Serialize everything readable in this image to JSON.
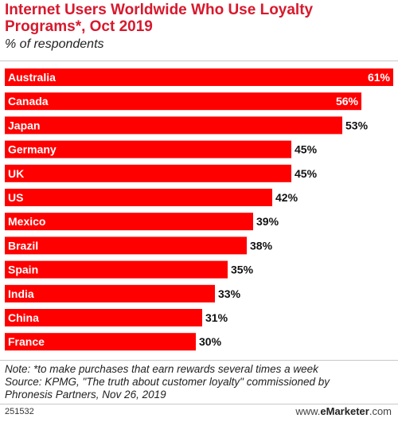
{
  "header": {
    "title": "Internet Users Worldwide Who Use Loyalty Programs*, Oct 2019",
    "subtitle": "% of respondents"
  },
  "chart_data": {
    "type": "bar",
    "orientation": "horizontal",
    "categories": [
      "Australia",
      "Canada",
      "Japan",
      "Germany",
      "UK",
      "US",
      "Mexico",
      "Brazil",
      "Spain",
      "India",
      "China",
      "France"
    ],
    "values": [
      61,
      56,
      53,
      45,
      45,
      42,
      39,
      38,
      35,
      33,
      31,
      30
    ],
    "value_labels": [
      "61%",
      "56%",
      "53%",
      "45%",
      "45%",
      "42%",
      "39%",
      "38%",
      "35%",
      "33%",
      "31%",
      "30%"
    ],
    "bar_color": "#ff0000",
    "xlim": [
      0,
      61
    ],
    "grid": false,
    "legend": "none"
  },
  "footer": {
    "note": "Note: *to make purchases that earn rewards several times a week",
    "source_line1": "Source: KPMG, \"The truth about customer loyalty\" commissioned by",
    "source_line2": "Phronesis Partners, Nov 26, 2019",
    "chart_id": "251532",
    "brand_prefix": "www.",
    "brand_name": "eMarketer",
    "brand_suffix": ".com"
  }
}
